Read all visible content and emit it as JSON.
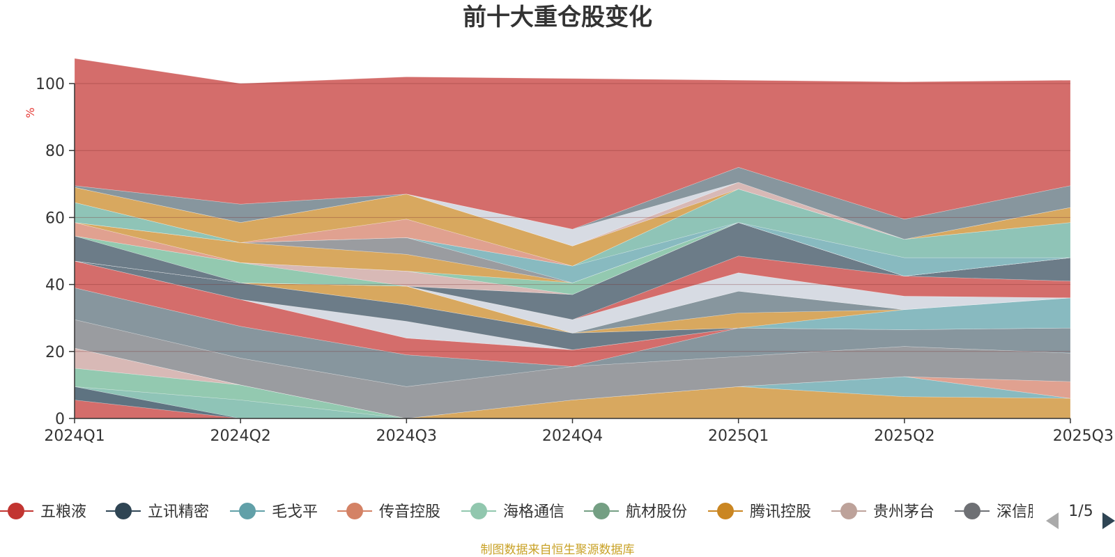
{
  "chart_data": {
    "type": "area",
    "title": "前十大重仓股变化",
    "unit_label": "%",
    "ylim": [
      0,
      100
    ],
    "yticks": [
      0,
      20,
      40,
      60,
      80,
      100
    ],
    "grid": true,
    "legend_position": "bottom",
    "categories": [
      "2024Q1",
      "2024Q2",
      "2024Q3",
      "2024Q4",
      "2025Q1",
      "2025Q2",
      "2025Q3"
    ],
    "layers": [
      {
        "color": "#d46d6b",
        "values": [
          5.5,
          0,
          0,
          0,
          0,
          0,
          0
        ]
      },
      {
        "color": "#5e7381",
        "values": [
          4,
          0,
          0,
          0,
          0,
          0,
          0
        ]
      },
      {
        "color": "#8fc4b7",
        "values": [
          0,
          5.5,
          0,
          0,
          0,
          0,
          0
        ]
      },
      {
        "color": "#93c9b0",
        "values": [
          5.5,
          4.5,
          0,
          0,
          0,
          0,
          0
        ]
      },
      {
        "color": "#d8b9b6",
        "values": [
          6,
          0,
          0,
          0,
          0,
          0,
          0
        ]
      },
      {
        "color": "#d8a85f",
        "values": [
          0,
          0,
          0,
          5.5,
          9.5,
          6.5,
          6
        ]
      },
      {
        "color": "#88bac0",
        "values": [
          0,
          0,
          0,
          0,
          0,
          6,
          0
        ]
      },
      {
        "color": "#e0a190",
        "values": [
          0,
          0,
          0,
          0,
          0,
          0,
          5
        ]
      },
      {
        "color": "#9a9ca0",
        "values": [
          8.5,
          8,
          9.5,
          10,
          9,
          9,
          8.5
        ]
      },
      {
        "color": "#87969e",
        "values": [
          9.5,
          9.5,
          9.5,
          0,
          8.5,
          5,
          7.5
        ]
      },
      {
        "color": "#d46d6b",
        "values": [
          8,
          8,
          5,
          5,
          0,
          0,
          0
        ]
      },
      {
        "color": "#d7dbe3",
        "values": [
          0,
          0,
          5,
          0,
          0,
          0,
          0
        ]
      },
      {
        "color": "#6c7c88",
        "values": [
          0,
          5,
          5,
          5,
          0,
          0,
          0
        ]
      },
      {
        "color": "#88bac0",
        "values": [
          0,
          0,
          0,
          0,
          0,
          6,
          9
        ]
      },
      {
        "color": "#d8a85f",
        "values": [
          0,
          0,
          5.5,
          0,
          4.5,
          0,
          0
        ]
      },
      {
        "color": "#87969e",
        "values": [
          0,
          0,
          0,
          0,
          6.5,
          0,
          0
        ]
      },
      {
        "color": "#d7dbe3",
        "values": [
          0,
          0,
          0,
          4,
          5.5,
          4,
          0
        ]
      },
      {
        "color": "#d46d6b",
        "values": [
          0,
          0,
          0,
          0,
          5,
          6,
          5
        ]
      },
      {
        "color": "#6c7c88",
        "values": [
          7.5,
          0,
          0,
          7.5,
          10,
          0,
          7
        ]
      },
      {
        "color": "#93c9b0",
        "values": [
          0,
          6,
          0,
          0,
          0,
          0,
          0
        ]
      },
      {
        "color": "#d8b9b6",
        "values": [
          0,
          0,
          4.5,
          0,
          0,
          0,
          0
        ]
      },
      {
        "color": "#e0a190",
        "values": [
          4,
          0,
          0,
          0,
          0,
          0,
          0
        ]
      },
      {
        "color": "#93c9b0",
        "values": [
          0,
          0,
          0,
          3.5,
          0,
          0,
          0
        ]
      },
      {
        "color": "#d8a85f",
        "values": [
          0,
          6,
          5,
          0,
          0,
          0,
          0
        ]
      },
      {
        "color": "#9a9ca0",
        "values": [
          0,
          0,
          5,
          0,
          0,
          0,
          0
        ]
      },
      {
        "color": "#88bac0",
        "values": [
          0,
          0,
          0,
          5,
          0,
          5.5,
          0
        ]
      },
      {
        "color": "#8fc4b7",
        "values": [
          6,
          0,
          0,
          0,
          10,
          5.5,
          10.5
        ]
      },
      {
        "color": "#e0a190",
        "values": [
          0,
          0,
          5.5,
          0,
          0,
          0,
          0
        ]
      },
      {
        "color": "#d8a85f",
        "values": [
          4.5,
          6,
          7.5,
          6,
          0,
          0,
          4.5
        ]
      },
      {
        "color": "#d8b9b6",
        "values": [
          0,
          0,
          0,
          0,
          2,
          0,
          0
        ]
      },
      {
        "color": "#d7dbe3",
        "values": [
          0,
          0,
          0,
          5,
          0,
          0,
          0
        ]
      },
      {
        "color": "#87969e",
        "values": [
          0.5,
          5.5,
          0,
          0,
          4.5,
          6,
          6.5
        ]
      },
      {
        "color": "#d46d6b",
        "values": [
          38,
          36,
          35,
          45,
          26,
          41,
          31.5
        ]
      }
    ]
  },
  "legend": {
    "items": [
      {
        "label": "五粮液",
        "color": "#c23531"
      },
      {
        "label": "立讯精密",
        "color": "#2f4554"
      },
      {
        "label": "毛戈平",
        "color": "#61a0a8"
      },
      {
        "label": "传音控股",
        "color": "#d48265"
      },
      {
        "label": "海格通信",
        "color": "#91c7ae"
      },
      {
        "label": "航材股份",
        "color": "#749f83"
      },
      {
        "label": "腾讯控股",
        "color": "#ca8622"
      },
      {
        "label": "贵州茅台",
        "color": "#bda29a"
      },
      {
        "label": "深信服",
        "color": "#6e7074"
      }
    ],
    "page_indicator": "1/5"
  },
  "source_note": "制图数据来自恒生聚源数据库"
}
